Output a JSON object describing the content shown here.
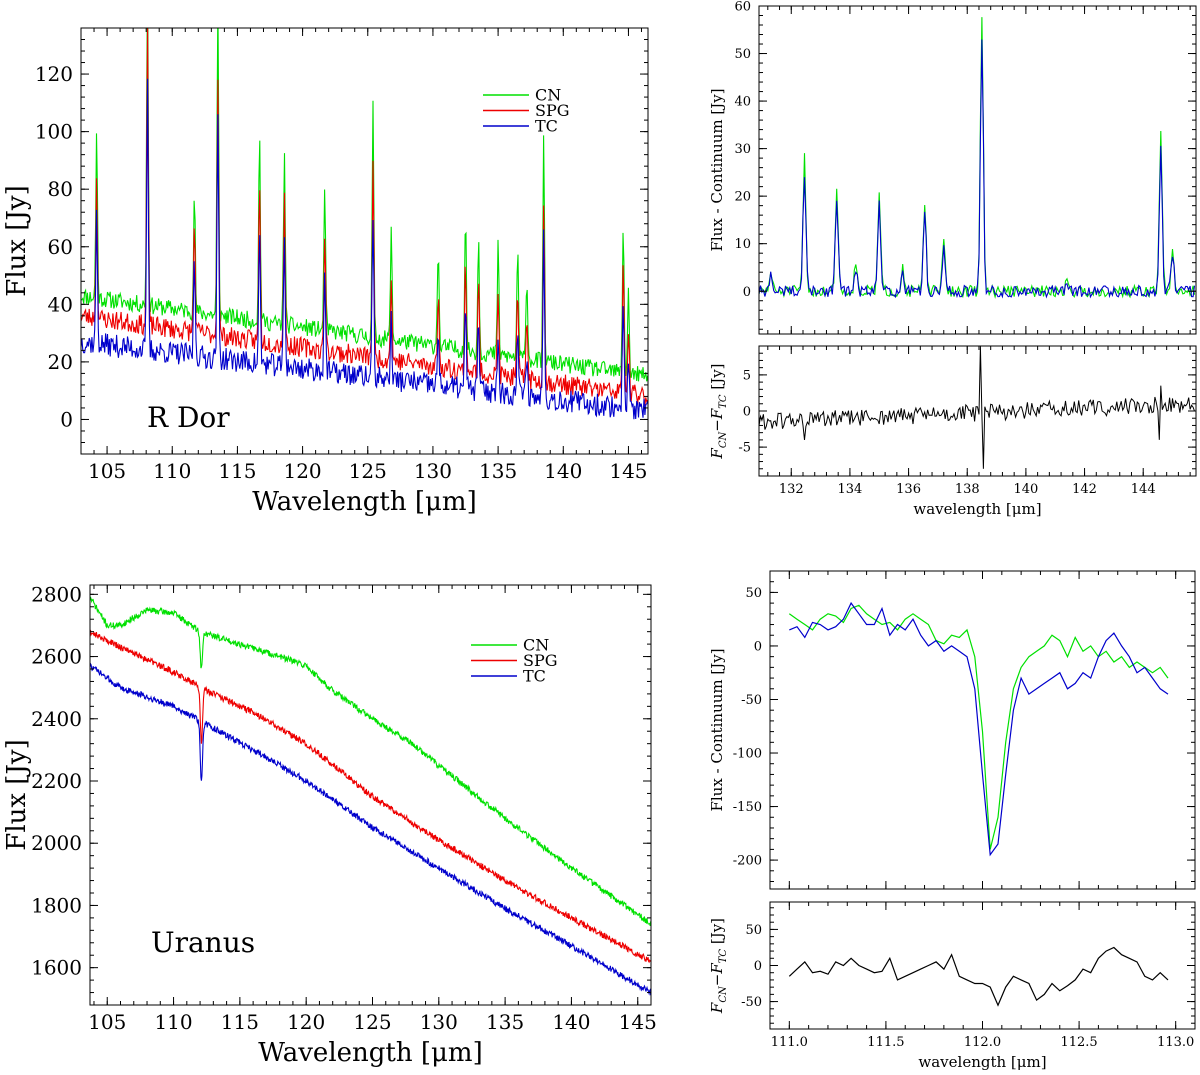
{
  "chart_data": [
    {
      "id": "rdor",
      "type": "line",
      "annotation": "R Dor",
      "xlabel": "Wavelength [μm]",
      "ylabel": "Flux [Jy]",
      "xlim": [
        103,
        146.5
      ],
      "ylim": [
        -12,
        136
      ],
      "xticks": [
        105,
        110,
        115,
        120,
        125,
        130,
        135,
        140,
        145
      ],
      "yticks": [
        0,
        20,
        40,
        60,
        80,
        100,
        120
      ],
      "legend": {
        "position": "top-right",
        "entries": [
          "CN",
          "SPG",
          "TC"
        ]
      },
      "series": [
        {
          "name": "CN",
          "color": "#00e000",
          "base_start": 43,
          "base_end": 15,
          "noise": 3.0,
          "noise_seed": 11
        },
        {
          "name": "SPG",
          "color": "#ee0000",
          "base_start": 36,
          "base_end": 8,
          "noise": 3.5,
          "noise_seed": 23
        },
        {
          "name": "TC",
          "color": "#0000cc",
          "base_start": 27,
          "base_end": 3,
          "noise": 4.0,
          "noise_seed": 37
        }
      ],
      "lines": [
        {
          "x": 104.2,
          "heights": [
            58,
            48,
            44
          ]
        },
        {
          "x": 108.1,
          "heights": [
            117,
            105,
            92
          ]
        },
        {
          "x": 111.7,
          "heights": [
            40,
            38,
            33
          ]
        },
        {
          "x": 113.5,
          "heights": [
            108,
            92,
            82
          ]
        },
        {
          "x": 116.7,
          "heights": [
            66,
            55,
            45
          ]
        },
        {
          "x": 118.6,
          "heights": [
            62,
            52,
            46
          ]
        },
        {
          "x": 121.7,
          "heights": [
            52,
            42,
            35
          ]
        },
        {
          "x": 125.4,
          "heights": [
            81,
            70,
            58
          ]
        },
        {
          "x": 126.8,
          "heights": [
            38,
            28,
            20
          ]
        },
        {
          "x": 130.4,
          "heights": [
            35,
            25,
            17
          ]
        },
        {
          "x": 132.5,
          "heights": [
            47,
            38,
            28
          ]
        },
        {
          "x": 133.5,
          "heights": [
            40,
            32,
            25
          ]
        },
        {
          "x": 135.0,
          "heights": [
            38,
            30,
            22
          ]
        },
        {
          "x": 136.5,
          "heights": [
            37,
            29,
            23
          ]
        },
        {
          "x": 137.2,
          "heights": [
            30,
            24,
            16
          ]
        },
        {
          "x": 138.5,
          "heights": [
            77,
            65,
            60
          ]
        },
        {
          "x": 144.6,
          "heights": [
            53,
            45,
            40
          ]
        },
        {
          "x": 145.0,
          "heights": [
            28,
            22,
            15
          ]
        }
      ]
    },
    {
      "id": "rdor_zoom",
      "type": "line",
      "xlabel": "",
      "ylabel": "Flux - Continuum [Jy]",
      "xlim": [
        130.9,
        145.8
      ],
      "ylim": [
        -9,
        60
      ],
      "xticks": [
        132,
        134,
        136,
        138,
        140,
        142,
        144
      ],
      "yticks": [
        0,
        10,
        20,
        30,
        40,
        50,
        60
      ],
      "series": [
        {
          "name": "CN",
          "color": "#00e000",
          "noise": 1.2,
          "noise_seed": 51
        },
        {
          "name": "TC",
          "color": "#0000cc",
          "noise": 1.2,
          "noise_seed": 52
        }
      ],
      "lines": [
        {
          "x": 131.3,
          "heights": [
            4,
            3
          ]
        },
        {
          "x": 132.45,
          "heights": [
            28,
            25
          ]
        },
        {
          "x": 133.55,
          "heights": [
            22,
            20
          ]
        },
        {
          "x": 134.2,
          "heights": [
            6,
            5
          ]
        },
        {
          "x": 135.0,
          "heights": [
            20,
            18
          ]
        },
        {
          "x": 135.8,
          "heights": [
            5,
            4
          ]
        },
        {
          "x": 136.55,
          "heights": [
            18,
            17
          ]
        },
        {
          "x": 137.2,
          "heights": [
            10,
            9
          ]
        },
        {
          "x": 138.5,
          "heights": [
            58,
            54
          ]
        },
        {
          "x": 141.4,
          "heights": [
            2,
            2
          ]
        },
        {
          "x": 144.6,
          "heights": [
            33,
            30
          ]
        },
        {
          "x": 145.0,
          "heights": [
            9,
            8
          ]
        }
      ]
    },
    {
      "id": "rdor_diff",
      "type": "line",
      "xlabel": "wavelength [μm]",
      "ylabel": "F_CN − F_TC [Jy]",
      "ylabel_main": "F",
      "ylabel_sub1": "CN",
      "ylabel_mid": "−F",
      "ylabel_sub2": "TC",
      "ylabel_unit": " [Jy]",
      "xlim": [
        130.9,
        145.8
      ],
      "ylim": [
        -9,
        9
      ],
      "xticks": [
        132,
        134,
        136,
        138,
        140,
        142,
        144
      ],
      "yticks": [
        -5,
        0,
        5
      ],
      "series": [
        {
          "name": "CN-TC",
          "color": "#000000",
          "noise": 1.2,
          "noise_seed": 61,
          "trend_start": -1.5,
          "trend_end": 1.0
        }
      ],
      "spikes": [
        {
          "x": 138.45,
          "value": 9
        },
        {
          "x": 138.55,
          "value": -8
        },
        {
          "x": 132.45,
          "value": -4
        },
        {
          "x": 144.6,
          "value": 3.5
        },
        {
          "x": 144.55,
          "value": -4
        }
      ]
    },
    {
      "id": "uranus",
      "type": "line",
      "annotation": "Uranus",
      "xlabel": "Wavelength [μm]",
      "ylabel": "Flux [Jy]",
      "xlim": [
        103.7,
        146
      ],
      "ylim": [
        1480,
        2830
      ],
      "xticks": [
        105,
        110,
        115,
        120,
        125,
        130,
        135,
        140,
        145
      ],
      "yticks": [
        1600,
        1800,
        2000,
        2200,
        2400,
        2600,
        2800
      ],
      "legend": {
        "position": "top-right",
        "entries": [
          "CN",
          "SPG",
          "TC"
        ]
      },
      "series": [
        {
          "name": "CN",
          "color": "#00e000",
          "points": [
            [
              103.7,
              2790
            ],
            [
              105,
              2700
            ],
            [
              106,
              2700
            ],
            [
              108,
              2750
            ],
            [
              110,
              2740
            ],
            [
              112,
              2680
            ],
            [
              115,
              2640
            ],
            [
              118,
              2600
            ],
            [
              120,
              2570
            ],
            [
              122,
              2490
            ],
            [
              125,
              2400
            ],
            [
              128,
              2320
            ],
            [
              130,
              2250
            ],
            [
              135,
              2080
            ],
            [
              140,
              1920
            ],
            [
              146,
              1740
            ]
          ],
          "noise": 10,
          "noise_seed": 71,
          "dip": [
            112.1,
            -120
          ]
        },
        {
          "name": "SPG",
          "color": "#ee0000",
          "points": [
            [
              103.7,
              2680
            ],
            [
              106,
              2630
            ],
            [
              110,
              2550
            ],
            [
              113,
              2480
            ],
            [
              116,
              2420
            ],
            [
              120,
              2320
            ],
            [
              125,
              2150
            ],
            [
              130,
              2010
            ],
            [
              135,
              1880
            ],
            [
              140,
              1760
            ],
            [
              146,
              1620
            ]
          ],
          "noise": 10,
          "noise_seed": 72,
          "dip": [
            112.1,
            -180
          ]
        },
        {
          "name": "TC",
          "color": "#0000cc",
          "points": [
            [
              103.7,
              2570
            ],
            [
              106,
              2500
            ],
            [
              110,
              2440
            ],
            [
              113,
              2370
            ],
            [
              116,
              2300
            ],
            [
              120,
              2200
            ],
            [
              125,
              2050
            ],
            [
              130,
              1920
            ],
            [
              135,
              1790
            ],
            [
              140,
              1670
            ],
            [
              146,
              1520
            ]
          ],
          "noise": 10,
          "noise_seed": 73,
          "dip": [
            112.1,
            -200
          ]
        }
      ]
    },
    {
      "id": "uranus_zoom",
      "type": "line",
      "xlabel": "",
      "ylabel": "Flux - Continuum [Jy]",
      "xlim": [
        110.9,
        113.1
      ],
      "ylim": [
        -227,
        70
      ],
      "xticks": [
        111.0,
        111.5,
        112.0,
        112.5,
        113.0
      ],
      "yticks": [
        -200,
        -150,
        -100,
        -50,
        0,
        50
      ],
      "series": [
        {
          "name": "CN",
          "color": "#00e000",
          "x": [
            111.0,
            111.04,
            111.08,
            111.12,
            111.16,
            111.2,
            111.24,
            111.28,
            111.32,
            111.36,
            111.4,
            111.44,
            111.48,
            111.52,
            111.56,
            111.6,
            111.64,
            111.68,
            111.72,
            111.76,
            111.8,
            111.84,
            111.88,
            111.92,
            111.96,
            112.0,
            112.04,
            112.08,
            112.12,
            112.16,
            112.2,
            112.24,
            112.28,
            112.32,
            112.36,
            112.4,
            112.44,
            112.48,
            112.52,
            112.56,
            112.6,
            112.64,
            112.68,
            112.72,
            112.76,
            112.8,
            112.84,
            112.88,
            112.92,
            112.96
          ],
          "y": [
            30,
            25,
            20,
            15,
            25,
            30,
            28,
            22,
            35,
            38,
            30,
            25,
            20,
            22,
            15,
            25,
            30,
            25,
            20,
            5,
            2,
            10,
            8,
            15,
            -10,
            -80,
            -190,
            -160,
            -90,
            -40,
            -20,
            -10,
            -5,
            0,
            10,
            5,
            -10,
            8,
            -5,
            0,
            -10,
            -5,
            -15,
            -10,
            -20,
            -15,
            -20,
            -25,
            -20,
            -30
          ]
        },
        {
          "name": "TC",
          "color": "#0000cc",
          "x": [
            111.0,
            111.04,
            111.08,
            111.12,
            111.16,
            111.2,
            111.24,
            111.28,
            111.32,
            111.36,
            111.4,
            111.44,
            111.48,
            111.52,
            111.56,
            111.6,
            111.64,
            111.68,
            111.72,
            111.76,
            111.8,
            111.84,
            111.88,
            111.92,
            111.96,
            112.0,
            112.04,
            112.08,
            112.12,
            112.16,
            112.2,
            112.24,
            112.28,
            112.32,
            112.36,
            112.4,
            112.44,
            112.48,
            112.52,
            112.56,
            112.6,
            112.64,
            112.68,
            112.72,
            112.76,
            112.8,
            112.84,
            112.88,
            112.92,
            112.96
          ],
          "y": [
            15,
            18,
            8,
            22,
            20,
            15,
            18,
            25,
            40,
            30,
            20,
            20,
            35,
            10,
            20,
            15,
            25,
            10,
            0,
            5,
            -5,
            0,
            -5,
            -10,
            -40,
            -120,
            -195,
            -185,
            -120,
            -60,
            -30,
            -45,
            -40,
            -35,
            -30,
            -25,
            -40,
            -35,
            -25,
            -30,
            -10,
            5,
            12,
            0,
            -10,
            -25,
            -20,
            -30,
            -40,
            -45
          ]
        }
      ]
    },
    {
      "id": "uranus_diff",
      "type": "line",
      "xlabel": "wavelength [μm]",
      "ylabel": "F_CN − F_TC [Jy]",
      "ylabel_main": "F",
      "ylabel_sub1": "CN",
      "ylabel_mid": "−F",
      "ylabel_sub2": "TC",
      "ylabel_unit": " [Jy]",
      "xlim": [
        110.9,
        113.1
      ],
      "ylim": [
        -88,
        88
      ],
      "xticks": [
        111.0,
        111.5,
        112.0,
        112.5,
        113.0
      ],
      "xtick_labels": [
        "111.0",
        "111.5",
        "112.0",
        "112.5",
        "113.0"
      ],
      "yticks": [
        -50,
        0,
        50
      ],
      "series": [
        {
          "name": "CN-TC",
          "color": "#000000",
          "x": [
            111.0,
            111.04,
            111.08,
            111.12,
            111.16,
            111.2,
            111.24,
            111.28,
            111.32,
            111.36,
            111.4,
            111.44,
            111.48,
            111.52,
            111.56,
            111.6,
            111.64,
            111.68,
            111.72,
            111.76,
            111.8,
            111.84,
            111.88,
            111.92,
            111.96,
            112.0,
            112.04,
            112.08,
            112.12,
            112.16,
            112.2,
            112.24,
            112.28,
            112.32,
            112.36,
            112.4,
            112.44,
            112.48,
            112.52,
            112.56,
            112.6,
            112.64,
            112.68,
            112.72,
            112.76,
            112.8,
            112.84,
            112.88,
            112.92,
            112.96
          ],
          "y": [
            -15,
            -5,
            5,
            -10,
            -8,
            -12,
            5,
            0,
            10,
            0,
            -5,
            -10,
            -8,
            10,
            -20,
            -15,
            -10,
            -5,
            0,
            5,
            -5,
            15,
            -15,
            -20,
            -25,
            -25,
            -30,
            -55,
            -30,
            -15,
            -20,
            -25,
            -48,
            -40,
            -25,
            -35,
            -28,
            -20,
            -5,
            -10,
            10,
            20,
            25,
            15,
            10,
            5,
            -15,
            -20,
            -10,
            -20
          ]
        }
      ]
    }
  ]
}
